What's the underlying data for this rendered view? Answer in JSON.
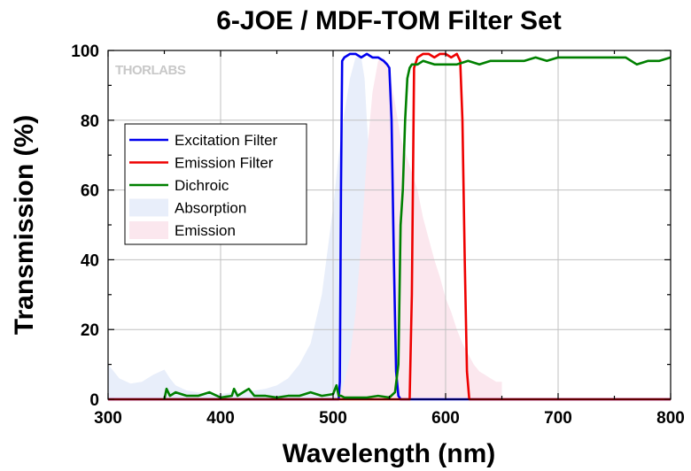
{
  "chart_data": {
    "type": "line",
    "title": "6-JOE / MDF-TOM Filter Set",
    "xlabel": "Wavelength (nm)",
    "ylabel": "Transmission (%)",
    "xlim": [
      300,
      800
    ],
    "ylim": [
      0,
      100
    ],
    "x_ticks": [
      300,
      400,
      500,
      600,
      700,
      800
    ],
    "y_ticks": [
      0,
      20,
      40,
      60,
      80,
      100
    ],
    "grid": true,
    "legend_position": "upper-left",
    "watermark": "THORLABS",
    "series": [
      {
        "name": "Excitation Filter",
        "kind": "line",
        "color": "#0000ee",
        "x": [
          300,
          505,
          506,
          507,
          508,
          510,
          515,
          520,
          525,
          530,
          535,
          540,
          545,
          548,
          550,
          552,
          554,
          556,
          558,
          560,
          800
        ],
        "y": [
          0,
          0,
          5,
          60,
          97,
          98,
          99,
          99,
          98,
          99,
          98,
          98,
          97,
          96,
          95,
          80,
          40,
          8,
          1,
          0,
          0
        ]
      },
      {
        "name": "Emission Filter",
        "kind": "line",
        "color": "#ee0000",
        "x": [
          300,
          568,
          570,
          572,
          575,
          580,
          585,
          590,
          595,
          600,
          605,
          610,
          613,
          615,
          617,
          619,
          621,
          800
        ],
        "y": [
          0,
          0,
          30,
          95,
          98,
          99,
          99,
          98,
          99,
          99,
          98,
          99,
          97,
          80,
          40,
          8,
          0,
          0
        ]
      },
      {
        "name": "Dichroic",
        "kind": "line",
        "color": "#008000",
        "x": [
          350,
          352,
          355,
          360,
          370,
          380,
          390,
          400,
          410,
          412,
          415,
          420,
          425,
          430,
          440,
          450,
          460,
          470,
          480,
          490,
          500,
          503,
          505,
          507,
          510,
          520,
          530,
          540,
          550,
          555,
          558,
          560,
          562,
          564,
          566,
          568,
          570,
          575,
          580,
          590,
          600,
          610,
          620,
          630,
          640,
          650,
          660,
          670,
          680,
          690,
          700,
          710,
          720,
          730,
          740,
          750,
          760,
          770,
          780,
          790,
          800
        ],
        "y": [
          0,
          3,
          1,
          2,
          1,
          1,
          2,
          0.5,
          1,
          3,
          1,
          2,
          3,
          1,
          1,
          0.5,
          1,
          1,
          2,
          1,
          1.5,
          4,
          1,
          1,
          0.5,
          0.5,
          0.5,
          1,
          0.5,
          2,
          10,
          50,
          60,
          80,
          92,
          95,
          96,
          96,
          97,
          96,
          96,
          96,
          97,
          96,
          97,
          97,
          97,
          97,
          98,
          97,
          98,
          98,
          98,
          98,
          98,
          98,
          98,
          96,
          97,
          97,
          98
        ]
      },
      {
        "name": "Absorption",
        "kind": "area",
        "color": "#e8eefa",
        "x": [
          300,
          310,
          320,
          330,
          340,
          350,
          355,
          360,
          370,
          380,
          390,
          400,
          410,
          420,
          430,
          440,
          450,
          460,
          470,
          480,
          490,
          500,
          505,
          510,
          515,
          520,
          525,
          528,
          530,
          535,
          540,
          545,
          550,
          555,
          560
        ],
        "y": [
          10,
          6,
          4.5,
          5,
          7,
          8.5,
          6,
          4,
          2.5,
          2,
          1.5,
          1.5,
          2,
          2,
          2.5,
          3,
          4,
          6,
          10,
          16,
          30,
          55,
          70,
          82,
          92,
          98,
          98,
          92,
          80,
          55,
          32,
          15,
          6,
          2,
          0
        ]
      },
      {
        "name": "Emission",
        "kind": "area",
        "color": "#fbe7ee",
        "x": [
          505,
          510,
          515,
          520,
          525,
          530,
          535,
          540,
          545,
          550,
          555,
          560,
          565,
          570,
          575,
          580,
          585,
          590,
          595,
          600,
          605,
          610,
          615,
          620,
          625,
          630,
          635,
          640,
          645,
          650
        ],
        "y": [
          0,
          5,
          12,
          25,
          45,
          70,
          88,
          97,
          98,
          94,
          85,
          75,
          70,
          65,
          60,
          52,
          46,
          40,
          35,
          29,
          25,
          20,
          16,
          13,
          10,
          8,
          7,
          6,
          5,
          5
        ]
      }
    ]
  }
}
